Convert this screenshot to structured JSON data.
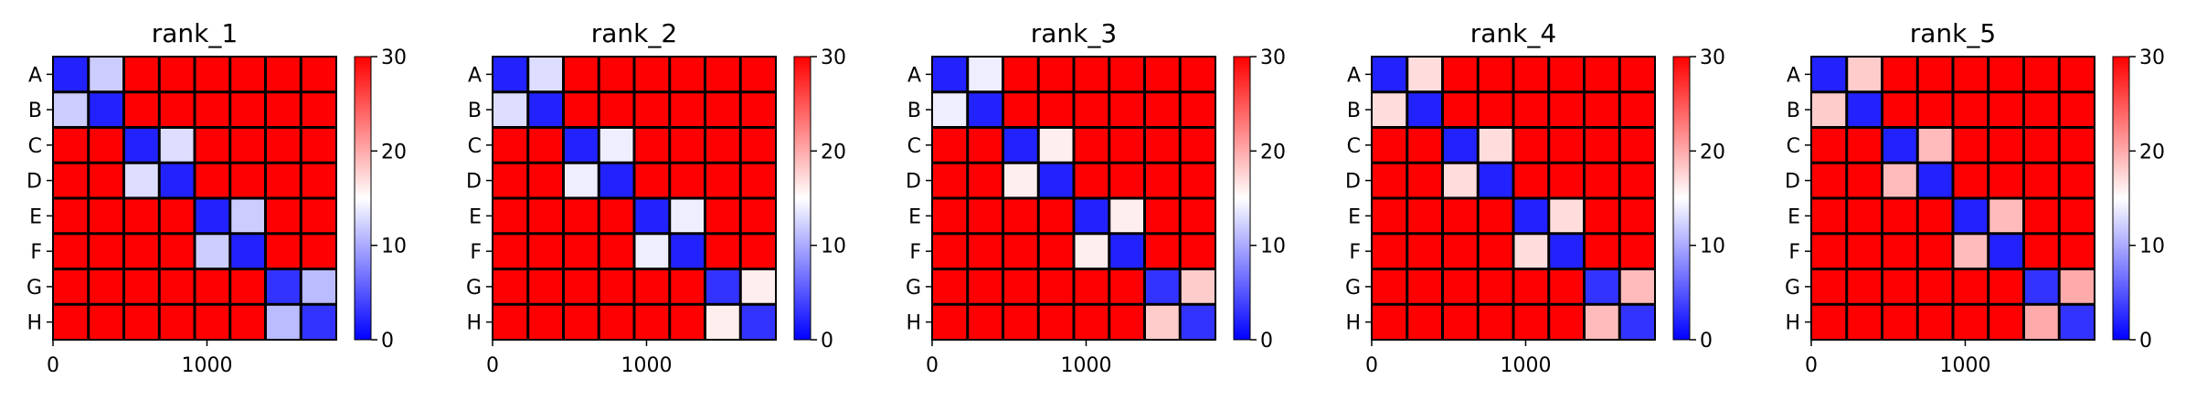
{
  "figure": {
    "panel_count": 5
  },
  "chart_data": [
    {
      "type": "heatmap",
      "title": "rank_1",
      "row_labels": [
        "A",
        "B",
        "C",
        "D",
        "E",
        "F",
        "G",
        "H"
      ],
      "x_ticks": [
        0,
        1000
      ],
      "x_range": [
        0,
        1840
      ],
      "colorbar": {
        "min": 0,
        "max": 30,
        "ticks": [
          0,
          10,
          20,
          30
        ],
        "colormap": "bwr",
        "low_color": "#0000ff",
        "mid_color": "#ffffff",
        "high_color": "#ff0000"
      },
      "block_values": [
        [
          2,
          12,
          30,
          30,
          30,
          30,
          30,
          30
        ],
        [
          12,
          2,
          30,
          30,
          30,
          30,
          30,
          30
        ],
        [
          30,
          30,
          2,
          13,
          30,
          30,
          30,
          30
        ],
        [
          30,
          30,
          13,
          2,
          30,
          30,
          30,
          30
        ],
        [
          30,
          30,
          30,
          30,
          2,
          12,
          30,
          30
        ],
        [
          30,
          30,
          30,
          30,
          12,
          2,
          30,
          30
        ],
        [
          30,
          30,
          30,
          30,
          30,
          30,
          3,
          11
        ],
        [
          30,
          30,
          30,
          30,
          30,
          30,
          11,
          3
        ]
      ]
    },
    {
      "type": "heatmap",
      "title": "rank_2",
      "row_labels": [
        "A",
        "B",
        "C",
        "D",
        "E",
        "F",
        "G",
        "H"
      ],
      "x_ticks": [
        0,
        1000
      ],
      "x_range": [
        0,
        1840
      ],
      "colorbar": {
        "min": 0,
        "max": 30,
        "ticks": [
          0,
          10,
          20,
          30
        ],
        "colormap": "bwr",
        "low_color": "#0000ff",
        "mid_color": "#ffffff",
        "high_color": "#ff0000"
      },
      "block_values": [
        [
          2,
          13,
          30,
          30,
          30,
          30,
          30,
          30
        ],
        [
          13,
          2,
          30,
          30,
          30,
          30,
          30,
          30
        ],
        [
          30,
          30,
          2,
          14,
          30,
          30,
          30,
          30
        ],
        [
          30,
          30,
          14,
          2,
          30,
          30,
          30,
          30
        ],
        [
          30,
          30,
          30,
          30,
          2,
          14,
          30,
          30
        ],
        [
          30,
          30,
          30,
          30,
          14,
          2,
          30,
          30
        ],
        [
          30,
          30,
          30,
          30,
          30,
          30,
          3,
          16
        ],
        [
          30,
          30,
          30,
          30,
          30,
          30,
          16,
          3
        ]
      ]
    },
    {
      "type": "heatmap",
      "title": "rank_3",
      "row_labels": [
        "A",
        "B",
        "C",
        "D",
        "E",
        "F",
        "G",
        "H"
      ],
      "x_ticks": [
        0,
        1000
      ],
      "x_range": [
        0,
        1840
      ],
      "colorbar": {
        "min": 0,
        "max": 30,
        "ticks": [
          0,
          10,
          20,
          30
        ],
        "colormap": "bwr",
        "low_color": "#0000ff",
        "mid_color": "#ffffff",
        "high_color": "#ff0000"
      },
      "block_values": [
        [
          2,
          14,
          30,
          30,
          30,
          30,
          30,
          30
        ],
        [
          14,
          2,
          30,
          30,
          30,
          30,
          30,
          30
        ],
        [
          30,
          30,
          2,
          16,
          30,
          30,
          30,
          30
        ],
        [
          30,
          30,
          16,
          2,
          30,
          30,
          30,
          30
        ],
        [
          30,
          30,
          30,
          30,
          2,
          16,
          30,
          30
        ],
        [
          30,
          30,
          30,
          30,
          16,
          2,
          30,
          30
        ],
        [
          30,
          30,
          30,
          30,
          30,
          30,
          3,
          18
        ],
        [
          30,
          30,
          30,
          30,
          30,
          30,
          18,
          3
        ]
      ]
    },
    {
      "type": "heatmap",
      "title": "rank_4",
      "row_labels": [
        "A",
        "B",
        "C",
        "D",
        "E",
        "F",
        "G",
        "H"
      ],
      "x_ticks": [
        0,
        1000
      ],
      "x_range": [
        0,
        1840
      ],
      "colorbar": {
        "min": 0,
        "max": 30,
        "ticks": [
          0,
          10,
          20,
          30
        ],
        "colormap": "bwr",
        "low_color": "#0000ff",
        "mid_color": "#ffffff",
        "high_color": "#ff0000"
      },
      "block_values": [
        [
          2,
          17,
          30,
          30,
          30,
          30,
          30,
          30
        ],
        [
          17,
          2,
          30,
          30,
          30,
          30,
          30,
          30
        ],
        [
          30,
          30,
          2,
          17,
          30,
          30,
          30,
          30
        ],
        [
          30,
          30,
          17,
          2,
          30,
          30,
          30,
          30
        ],
        [
          30,
          30,
          30,
          30,
          2,
          17,
          30,
          30
        ],
        [
          30,
          30,
          30,
          30,
          17,
          2,
          30,
          30
        ],
        [
          30,
          30,
          30,
          30,
          30,
          30,
          3,
          19
        ],
        [
          30,
          30,
          30,
          30,
          30,
          30,
          19,
          3
        ]
      ]
    },
    {
      "type": "heatmap",
      "title": "rank_5",
      "row_labels": [
        "A",
        "B",
        "C",
        "D",
        "E",
        "F",
        "G",
        "H"
      ],
      "x_ticks": [
        0,
        1000
      ],
      "x_range": [
        0,
        1840
      ],
      "colorbar": {
        "min": 0,
        "max": 30,
        "ticks": [
          0,
          10,
          20,
          30
        ],
        "colormap": "bwr",
        "low_color": "#0000ff",
        "mid_color": "#ffffff",
        "high_color": "#ff0000"
      },
      "block_values": [
        [
          2,
          18,
          30,
          30,
          30,
          30,
          30,
          30
        ],
        [
          18,
          2,
          30,
          30,
          30,
          30,
          30,
          30
        ],
        [
          30,
          30,
          2,
          19,
          30,
          30,
          30,
          30
        ],
        [
          30,
          30,
          19,
          2,
          30,
          30,
          30,
          30
        ],
        [
          30,
          30,
          30,
          30,
          2,
          19,
          30,
          30
        ],
        [
          30,
          30,
          30,
          30,
          19,
          2,
          30,
          30
        ],
        [
          30,
          30,
          30,
          30,
          30,
          30,
          3,
          20
        ],
        [
          30,
          30,
          30,
          30,
          30,
          30,
          20,
          3
        ]
      ]
    }
  ]
}
